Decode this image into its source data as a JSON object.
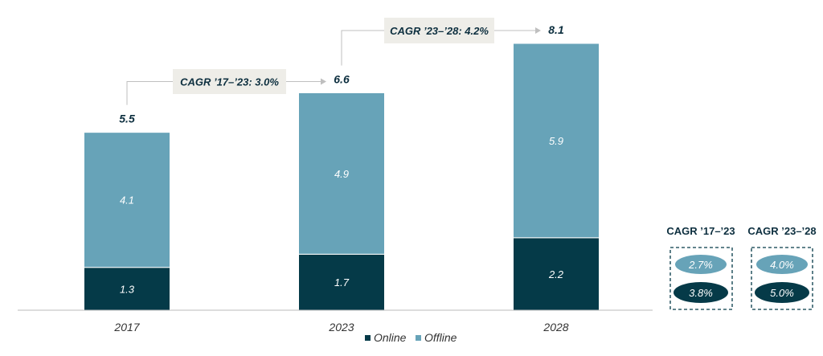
{
  "chart_data": {
    "type": "bar",
    "stacked": true,
    "categories": [
      "2017",
      "2023",
      "2028"
    ],
    "series": [
      {
        "name": "Online",
        "values": [
          1.3,
          1.7,
          2.2
        ],
        "color": "#053a48"
      },
      {
        "name": "Offline",
        "values": [
          4.1,
          4.9,
          5.9
        ],
        "color": "#67a3b8"
      }
    ],
    "totals": [
      "5.5",
      "6.6",
      "8.1"
    ],
    "ylim": [
      0,
      8.1
    ],
    "grid": false,
    "legend_position": "bottom-center",
    "annotations": [
      {
        "text": "CAGR ’17–’23: 3.0%",
        "from": "2017",
        "to": "2023"
      },
      {
        "text": "CAGR ’23–’28: 4.2%",
        "from": "2023",
        "to": "2028"
      }
    ],
    "side_panels": [
      {
        "title": "CAGR ’17–’23",
        "offline": "2.7%",
        "online": "3.8%"
      },
      {
        "title": "CAGR ’23–’28",
        "offline": "4.0%",
        "online": "5.0%"
      }
    ]
  },
  "colors": {
    "online": "#053a48",
    "offline": "#67a3b8",
    "annotation_bg": "#eeede8",
    "connector": "#bfbfbf",
    "axis": "#bbbbbb"
  }
}
